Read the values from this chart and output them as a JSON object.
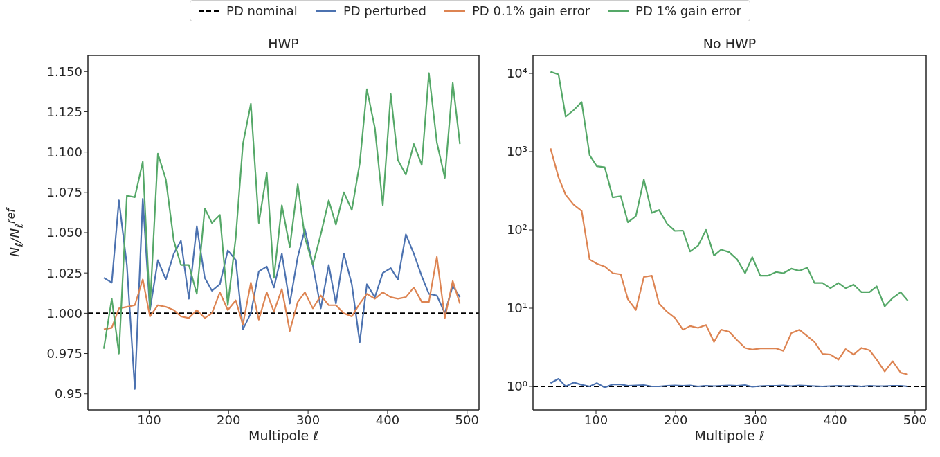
{
  "chart_data": [
    {
      "type": "line",
      "title": "HWP",
      "xlabel": "Multipole ℓ",
      "ylabel": "N$_{ℓ}$/N$_{ℓ}$$^{ref}$",
      "xlim": [
        23,
        515
      ],
      "xticks": [
        100,
        200,
        300,
        400,
        500
      ],
      "ylim": [
        0.94,
        1.16
      ],
      "yticks": [
        0.95,
        {
          "value": 0.975,
          "label": "0.975"
        },
        {
          "value": 1,
          "label": "1.000"
        },
        1.025,
        {
          "value": 1.05,
          "label": "1.050"
        },
        1.075,
        {
          "value": 1.1,
          "label": "1.100"
        },
        1.125,
        {
          "value": 1.15,
          "label": "1.150"
        }
      ],
      "legend": "top",
      "marker": "none",
      "series": [
        {
          "name": "PD nominal",
          "color": "#000000",
          "line_style": "dashed",
          "x": [
            23,
            515
          ],
          "values": [
            1,
            1
          ]
        },
        {
          "name": "PD perturbed",
          "color": "#4c72b0",
          "x": [
            43,
            53,
            62,
            72,
            82,
            92,
            101,
            111,
            121,
            131,
            140,
            150,
            160,
            170,
            179,
            189,
            199,
            209,
            218,
            228,
            238,
            248,
            257,
            267,
            277,
            287,
            296,
            306,
            316,
            326,
            335,
            345,
            355,
            365,
            374,
            384,
            394,
            404,
            413,
            423,
            433,
            443,
            452,
            462,
            472,
            482,
            491
          ],
          "values": [
            1.022,
            1.019,
            1.07,
            1.03,
            0.953,
            1.071,
            1.002,
            1.033,
            1.021,
            1.037,
            1.045,
            1.009,
            1.054,
            1.022,
            1.014,
            1.018,
            1.039,
            1.033,
            0.99,
            1.0,
            1.026,
            1.029,
            1.016,
            1.037,
            1.006,
            1.035,
            1.052,
            1.03,
            1.003,
            1.03,
            1.006,
            1.037,
            1.018,
            0.982,
            1.018,
            1.01,
            1.025,
            1.028,
            1.021,
            1.049,
            1.037,
            1.023,
            1.012,
            1.011,
            1.0,
            1.017,
            1.01
          ]
        },
        {
          "name": "PD 0.1% gain error",
          "color": "#dd8452",
          "x": [
            43,
            53,
            62,
            72,
            82,
            92,
            101,
            111,
            121,
            131,
            140,
            150,
            160,
            170,
            179,
            189,
            199,
            209,
            218,
            228,
            238,
            248,
            257,
            267,
            277,
            287,
            296,
            306,
            316,
            326,
            335,
            345,
            355,
            365,
            374,
            384,
            394,
            404,
            413,
            423,
            433,
            443,
            452,
            462,
            472,
            482,
            491
          ],
          "values": [
            0.99,
            0.991,
            1.003,
            1.004,
            1.005,
            1.021,
            0.998,
            1.005,
            1.004,
            1.002,
            0.998,
            0.997,
            1.002,
            0.997,
            1.0,
            1.013,
            1.002,
            1.008,
            0.993,
            1.019,
            0.996,
            1.013,
            1.001,
            1.015,
            0.989,
            1.007,
            1.013,
            1.003,
            1.011,
            1.005,
            1.005,
            1.0,
            0.998,
            1.006,
            1.012,
            1.009,
            1.013,
            1.01,
            1.009,
            1.01,
            1.016,
            1.007,
            1.007,
            1.035,
            0.997,
            1.02,
            1.006
          ]
        },
        {
          "name": "PD 1% gain error",
          "color": "#55a868",
          "x": [
            43,
            53,
            62,
            72,
            82,
            92,
            101,
            111,
            121,
            131,
            140,
            150,
            160,
            170,
            179,
            189,
            199,
            209,
            218,
            228,
            238,
            248,
            257,
            267,
            277,
            287,
            296,
            306,
            316,
            326,
            335,
            345,
            355,
            365,
            374,
            384,
            394,
            404,
            413,
            423,
            433,
            443,
            452,
            462,
            472,
            482,
            491
          ],
          "values": [
            0.978,
            1.009,
            0.975,
            1.073,
            1.072,
            1.094,
            1.003,
            1.099,
            1.083,
            1.045,
            1.03,
            1.03,
            1.012,
            1.065,
            1.056,
            1.061,
            1.005,
            1.047,
            1.105,
            1.13,
            1.056,
            1.087,
            1.022,
            1.067,
            1.041,
            1.08,
            1.047,
            1.03,
            1.049,
            1.07,
            1.055,
            1.075,
            1.064,
            1.093,
            1.139,
            1.115,
            1.067,
            1.136,
            1.095,
            1.086,
            1.105,
            1.092,
            1.149,
            1.106,
            1.084,
            1.143,
            1.105
          ]
        }
      ]
    },
    {
      "type": "line",
      "title": "No HWP",
      "xlabel": "Multipole ℓ",
      "xlim": [
        21,
        514
      ],
      "xticks": [
        100,
        200,
        300,
        400,
        500
      ],
      "ylim": [
        0.5,
        17000
      ],
      "yticks": [
        {
          "value": 1,
          "label": "10⁰"
        },
        {
          "value": 10,
          "label": "10¹"
        },
        {
          "value": 100,
          "label": "10²"
        },
        {
          "value": 1000,
          "label": "10³"
        },
        {
          "value": 10000,
          "label": "10⁴"
        }
      ],
      "log": "y",
      "marker": "none",
      "series": [
        {
          "color": "#000000",
          "line_style": "dashed",
          "x": [
            21,
            514
          ],
          "values": [
            1,
            1
          ]
        },
        {
          "color": "#4c72b0",
          "x": [
            43,
            53,
            62,
            72,
            82,
            92,
            101,
            111,
            121,
            131,
            140,
            150,
            160,
            170,
            179,
            189,
            199,
            209,
            218,
            228,
            238,
            248,
            257,
            267,
            277,
            287,
            296,
            306,
            316,
            326,
            335,
            345,
            355,
            365,
            374,
            384,
            394,
            404,
            413,
            423,
            433,
            443,
            452,
            462,
            472,
            482,
            491
          ],
          "values": [
            1.1,
            1.25,
            1.0,
            1.12,
            1.05,
            1.0,
            1.1,
            0.97,
            1.06,
            1.06,
            1.02,
            1.03,
            1.04,
            1.0,
            1.0,
            1.02,
            1.03,
            1.02,
            1.03,
            1.0,
            1.02,
            1.01,
            1.02,
            1.03,
            1.02,
            1.04,
            0.99,
            1.01,
            1.02,
            1.02,
            1.03,
            1.01,
            1.03,
            1.02,
            1.01,
            1.0,
            1.01,
            1.02,
            1.01,
            1.02,
            1.0,
            1.02,
            1.01,
            1.01,
            1.02,
            1.02,
            1.0
          ]
        },
        {
          "color": "#dd8452",
          "x": [
            43,
            53,
            62,
            72,
            82,
            92,
            101,
            111,
            121,
            131,
            140,
            150,
            160,
            170,
            179,
            189,
            199,
            209,
            218,
            228,
            238,
            248,
            257,
            267,
            277,
            287,
            296,
            306,
            316,
            326,
            335,
            345,
            355,
            365,
            374,
            384,
            394,
            404,
            413,
            423,
            433,
            443,
            452,
            462,
            472,
            482,
            491
          ],
          "values": [
            1100,
            470,
            280,
            210,
            175,
            42,
            37,
            34,
            28,
            27,
            13,
            9.5,
            25,
            26,
            11.5,
            9,
            7.5,
            5.3,
            5.9,
            5.6,
            6.1,
            3.7,
            5.3,
            5.0,
            3.9,
            3.1,
            2.95,
            3.05,
            3.05,
            3.05,
            2.85,
            4.8,
            5.3,
            4.4,
            3.7,
            2.6,
            2.55,
            2.2,
            3.0,
            2.55,
            3.1,
            2.9,
            2.2,
            1.55,
            2.1,
            1.5,
            1.42
          ]
        },
        {
          "color": "#55a868",
          "x": [
            43,
            53,
            62,
            72,
            82,
            92,
            101,
            111,
            121,
            131,
            140,
            150,
            160,
            170,
            179,
            189,
            199,
            209,
            218,
            228,
            238,
            248,
            257,
            267,
            277,
            287,
            296,
            306,
            316,
            326,
            335,
            345,
            355,
            365,
            374,
            384,
            394,
            404,
            413,
            423,
            433,
            443,
            452,
            462,
            472,
            482,
            491
          ],
          "values": [
            10500,
            9700,
            2800,
            3400,
            4300,
            900,
            650,
            630,
            260,
            270,
            125,
            150,
            440,
            165,
            180,
            120,
            97,
            98,
            53,
            63,
            100,
            47,
            56,
            52,
            42,
            28,
            45,
            26,
            26,
            29,
            28,
            32,
            30,
            33,
            21,
            21,
            18,
            21,
            18,
            20,
            16,
            16,
            19,
            10.5,
            13.5,
            16,
            12.5
          ]
        }
      ]
    }
  ]
}
